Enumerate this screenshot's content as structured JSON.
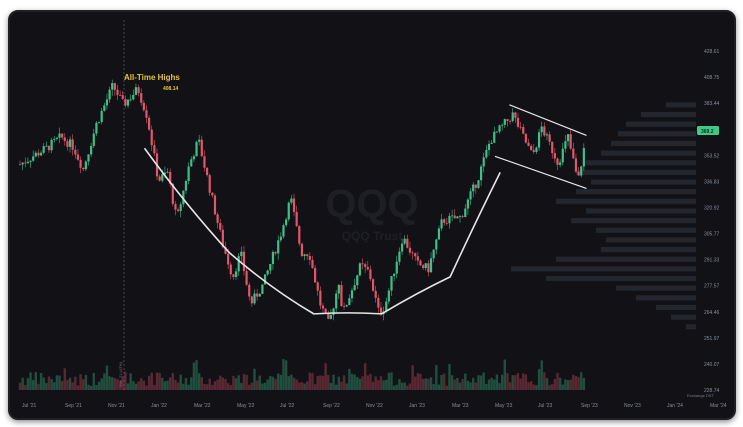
{
  "chart_data": {
    "type": "candlestick",
    "symbol": "QQQ",
    "watermark_sub": "QQQ Trust",
    "y_ticks": [
      "428.61",
      "408.75",
      "383.44",
      "369.2",
      "353.52",
      "336.83",
      "320.92",
      "305.77",
      "291.33",
      "277.57",
      "264.46",
      "251.97",
      "240.07",
      "228.74"
    ],
    "x_ticks": [
      "Jul '21",
      "Sep '21",
      "Nov '21",
      "Jan '22",
      "Mar '22",
      "May '22",
      "Jul '22",
      "Sep '22",
      "Nov '22",
      "Jan '23",
      "Mar '23",
      "May '23",
      "Jul '23",
      "Sep '23",
      "Nov '23",
      "Jan '24",
      "Mar '24"
    ],
    "last_price": "369.2",
    "corner_label": "Exchange DST",
    "annotation": {
      "title": "All-Time Highs",
      "value": "408.14"
    },
    "vertical_marker_label": "Nov '21 (ATH)",
    "price_path": [
      [
        "2021-07-01",
        355
      ],
      [
        "2021-07-20",
        360
      ],
      [
        "2021-08-10",
        365
      ],
      [
        "2021-09-01",
        372
      ],
      [
        "2021-09-20",
        366
      ],
      [
        "2021-10-05",
        352
      ],
      [
        "2021-10-25",
        380
      ],
      [
        "2021-11-19",
        404
      ],
      [
        "2021-12-05",
        392
      ],
      [
        "2021-12-27",
        402
      ],
      [
        "2022-01-10",
        385
      ],
      [
        "2022-01-27",
        345
      ],
      [
        "2022-02-10",
        350
      ],
      [
        "2022-02-24",
        320
      ],
      [
        "2022-03-15",
        355
      ],
      [
        "2022-03-29",
        370
      ],
      [
        "2022-04-15",
        340
      ],
      [
        "2022-05-05",
        305
      ],
      [
        "2022-05-20",
        285
      ],
      [
        "2022-06-01",
        300
      ],
      [
        "2022-06-16",
        268
      ],
      [
        "2022-07-05",
        280
      ],
      [
        "2022-08-01",
        312
      ],
      [
        "2022-08-16",
        334
      ],
      [
        "2022-09-01",
        300
      ],
      [
        "2022-09-13",
        300
      ],
      [
        "2022-09-30",
        268
      ],
      [
        "2022-10-13",
        255
      ],
      [
        "2022-10-28",
        282
      ],
      [
        "2022-11-03",
        262
      ],
      [
        "2022-11-30",
        292
      ],
      [
        "2022-12-13",
        288
      ],
      [
        "2022-12-28",
        262
      ],
      [
        "2023-01-06",
        267
      ],
      [
        "2023-02-02",
        310
      ],
      [
        "2023-02-24",
        293
      ],
      [
        "2023-03-13",
        290
      ],
      [
        "2023-04-03",
        320
      ],
      [
        "2023-05-01",
        322
      ],
      [
        "2023-05-26",
        345
      ],
      [
        "2023-06-15",
        370
      ],
      [
        "2023-07-19",
        386
      ],
      [
        "2023-08-18",
        360
      ],
      [
        "2023-09-01",
        378
      ],
      [
        "2023-09-26",
        356
      ],
      [
        "2023-10-11",
        372
      ],
      [
        "2023-10-26",
        344
      ],
      [
        "2023-11-06",
        369
      ]
    ],
    "trendline_u": [
      [
        "2022-01-06",
        365
      ],
      [
        "2022-05-15",
        300
      ],
      [
        "2022-09-20",
        262
      ],
      [
        "2023-01-01",
        262
      ],
      [
        "2023-04-15",
        285
      ],
      [
        "2023-06-30",
        350
      ]
    ],
    "channel_upper": [
      [
        "2023-07-14",
        392
      ],
      [
        "2023-11-08",
        373
      ]
    ],
    "channel_lower": [
      [
        "2023-06-22",
        360
      ],
      [
        "2023-11-08",
        340
      ]
    ],
    "colors": {
      "up": "#3fbf8a",
      "down": "#e0566a",
      "annotation": "#e8c33a",
      "line": "#e6e6e6",
      "price_tag": "#40c986"
    }
  }
}
